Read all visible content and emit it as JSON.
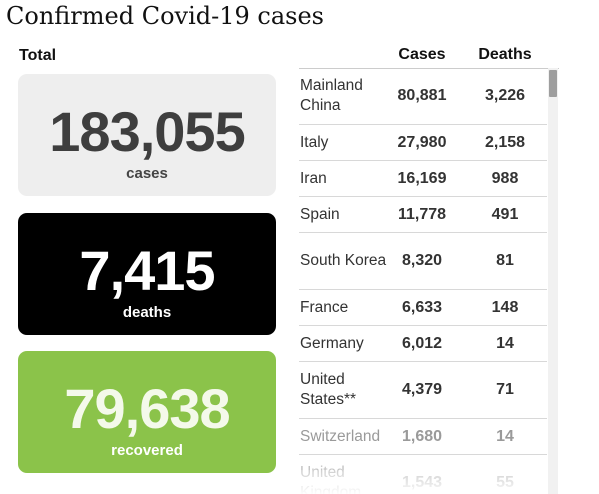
{
  "title": "Confirmed Covid-19 cases",
  "total_label": "Total",
  "cards": {
    "cases": {
      "value": "183,055",
      "label": "cases",
      "color": "#eeeeee"
    },
    "deaths": {
      "value": "7,415",
      "label": "deaths",
      "color": "#000000"
    },
    "recovered": {
      "value": "79,638",
      "label": "recovered",
      "color": "#8bc34a"
    }
  },
  "table": {
    "headers": {
      "cases": "Cases",
      "deaths": "Deaths"
    },
    "rows": [
      {
        "country": "Mainland China",
        "cases": "80,881",
        "deaths": "3,226"
      },
      {
        "country": "Italy",
        "cases": "27,980",
        "deaths": "2,158"
      },
      {
        "country": "Iran",
        "cases": "16,169",
        "deaths": "988"
      },
      {
        "country": "Spain",
        "cases": "11,778",
        "deaths": "491"
      },
      {
        "country": "South Korea",
        "cases": "8,320",
        "deaths": "81"
      },
      {
        "country": "France",
        "cases": "6,633",
        "deaths": "148"
      },
      {
        "country": "Germany",
        "cases": "6,012",
        "deaths": "14"
      },
      {
        "country": "United States**",
        "cases": "4,379",
        "deaths": "71"
      },
      {
        "country": "Switzerland",
        "cases": "1,680",
        "deaths": "14"
      },
      {
        "country": "United Kingdom",
        "cases": "1,543",
        "deaths": "55"
      }
    ]
  }
}
